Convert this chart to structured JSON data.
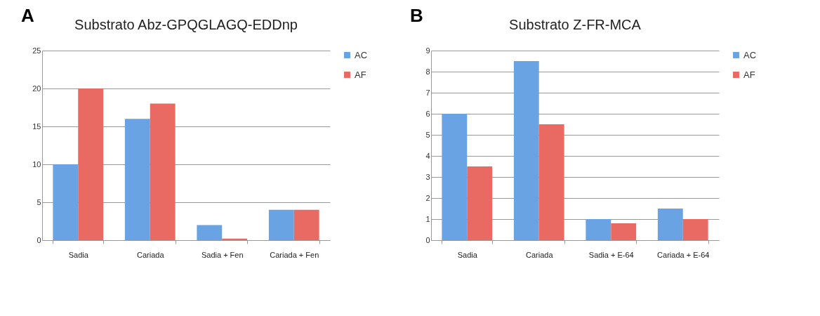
{
  "chart_data": [
    {
      "type": "bar",
      "title": "Substrato Abz-GPQGLAGQ-EDDnp",
      "annotations": [
        "A"
      ],
      "categories": [
        "Sadia",
        "Cariada",
        "Sadia + Fen",
        "Cariada + Fen"
      ],
      "series": [
        {
          "name": "AC",
          "color": "#6aa3e3",
          "values": [
            10,
            16,
            2,
            4
          ]
        },
        {
          "name": "AF",
          "color": "#e86a62",
          "values": [
            20,
            18,
            0.2,
            4
          ]
        }
      ],
      "ylim": [
        0,
        25
      ],
      "yticks": [
        0,
        5,
        10,
        15,
        20,
        25
      ],
      "grid": "y",
      "legend": "right"
    },
    {
      "type": "bar",
      "title": "Substrato Z-FR-MCA",
      "annotations": [
        "B"
      ],
      "categories": [
        "Sadia",
        "Cariada",
        "Sadia + E-64",
        "Cariada + E-64"
      ],
      "series": [
        {
          "name": "AC",
          "color": "#6aa3e3",
          "values": [
            6,
            8.5,
            1,
            1.5
          ]
        },
        {
          "name": "AF",
          "color": "#e86a62",
          "values": [
            3.5,
            5.5,
            0.8,
            1
          ]
        }
      ],
      "ylim": [
        0,
        9
      ],
      "yticks": [
        0,
        1,
        2,
        3,
        4,
        5,
        6,
        7,
        8,
        9
      ],
      "grid": "y",
      "legend": "right"
    }
  ]
}
